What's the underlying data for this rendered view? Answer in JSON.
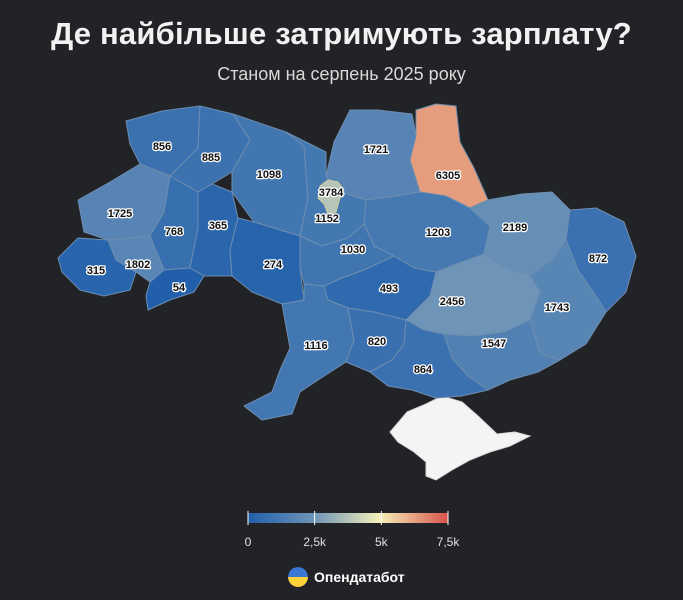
{
  "header": {
    "title": "Де найбільше затримують зарплату?",
    "subtitle": "Станом на серпень 2025 року"
  },
  "colors": {
    "background": "#222326",
    "scale_low": "#1f5eab",
    "scale_mid_low": "#6f95b8",
    "scale_mid": "#f5f0b8",
    "scale_high": "#d9534b",
    "crimea": "#f4f4f4"
  },
  "map": {
    "legend": {
      "min": 0,
      "max": 7500,
      "ticks": [
        {
          "value": 0,
          "label": "0"
        },
        {
          "value": 2500,
          "label": "2,5k"
        },
        {
          "value": 5000,
          "label": "5k"
        },
        {
          "value": 7500,
          "label": "7,5k"
        }
      ]
    },
    "regions": [
      {
        "id": "volyn",
        "value": 856
      },
      {
        "id": "rivne",
        "value": 885
      },
      {
        "id": "zhytomyr",
        "value": 1098
      },
      {
        "id": "kyiv-city",
        "value": 3784
      },
      {
        "id": "chernihiv",
        "value": 1721
      },
      {
        "id": "sumy",
        "value": 6305
      },
      {
        "id": "lviv",
        "value": 1725
      },
      {
        "id": "ternopil",
        "value": 768
      },
      {
        "id": "khmelnytskyi",
        "value": 365
      },
      {
        "id": "kyiv-oblast",
        "value": 1152
      },
      {
        "id": "poltava",
        "value": 1203
      },
      {
        "id": "kharkiv",
        "value": 2189
      },
      {
        "id": "luhansk",
        "value": 872
      },
      {
        "id": "zakarpattia",
        "value": 315
      },
      {
        "id": "ivano-frankivsk",
        "value": 1802
      },
      {
        "id": "chernivtsi",
        "value": 54
      },
      {
        "id": "vinnytsia",
        "value": 274
      },
      {
        "id": "cherkasy",
        "value": 1030
      },
      {
        "id": "kirovohrad",
        "value": 493
      },
      {
        "id": "dnipropetrovsk",
        "value": 2456
      },
      {
        "id": "donetsk",
        "value": 1743
      },
      {
        "id": "odesa",
        "value": 1116
      },
      {
        "id": "mykolaiv",
        "value": 820
      },
      {
        "id": "zaporizhzhia",
        "value": 1547
      },
      {
        "id": "kherson",
        "value": 864
      }
    ]
  },
  "brand": {
    "name": "Опендатабот",
    "icon": "ukraine-flag-circle-icon"
  }
}
